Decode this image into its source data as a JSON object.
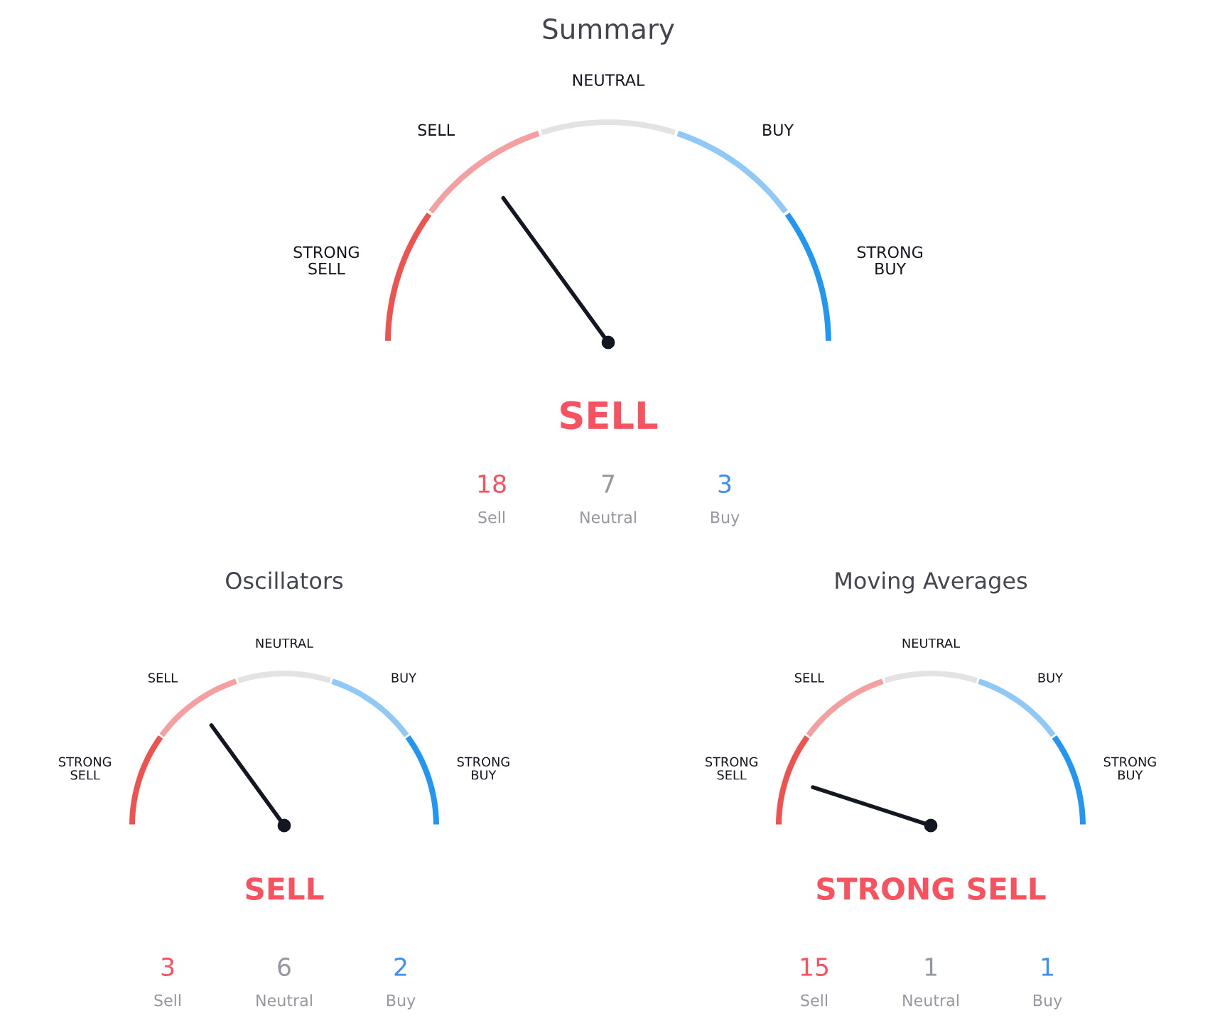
{
  "chart_data": [
    {
      "type": "donut",
      "title": "Summary",
      "categories": [
        "STRONG\nSELL",
        "SELL",
        "NEUTRAL",
        "BUY",
        "STRONG\nBUY"
      ],
      "values": [
        20,
        20,
        20,
        20,
        20
      ],
      "colors": [
        "#ef5350",
        "#f4a0a0",
        "#e3e3e3",
        "#90c8f6",
        "#2196f3"
      ],
      "needle": "SELL",
      "annotations": [
        "SELL",
        "18",
        "Sell",
        "7",
        "Neutral",
        "3",
        "Buy"
      ]
    },
    {
      "type": "donut",
      "title": "Oscillators",
      "categories": [
        "STRONG\nSELL",
        "SELL",
        "NEUTRAL",
        "BUY",
        "STRONG\nBUY"
      ],
      "values": [
        20,
        20,
        20,
        20,
        20
      ],
      "colors": [
        "#ef5350",
        "#f4a0a0",
        "#e3e3e3",
        "#90c8f6",
        "#2196f3"
      ],
      "needle": "SELL",
      "annotations": [
        "SELL",
        "3",
        "Sell",
        "6",
        "Neutral",
        "2",
        "Buy"
      ]
    },
    {
      "type": "donut",
      "title": "Moving Averages",
      "categories": [
        "STRONG\nSELL",
        "SELL",
        "NEUTRAL",
        "BUY",
        "STRONG\nBUY"
      ],
      "values": [
        20,
        20,
        20,
        20,
        20
      ],
      "colors": [
        "#ef5350",
        "#f4a0a0",
        "#e3e3e3",
        "#90c8f6",
        "#2196f3"
      ],
      "needle": "STRONG\nSELL",
      "annotations": [
        "STRONG SELL",
        "15",
        "Sell",
        "1",
        "Neutral",
        "1",
        "Buy"
      ]
    }
  ]
}
